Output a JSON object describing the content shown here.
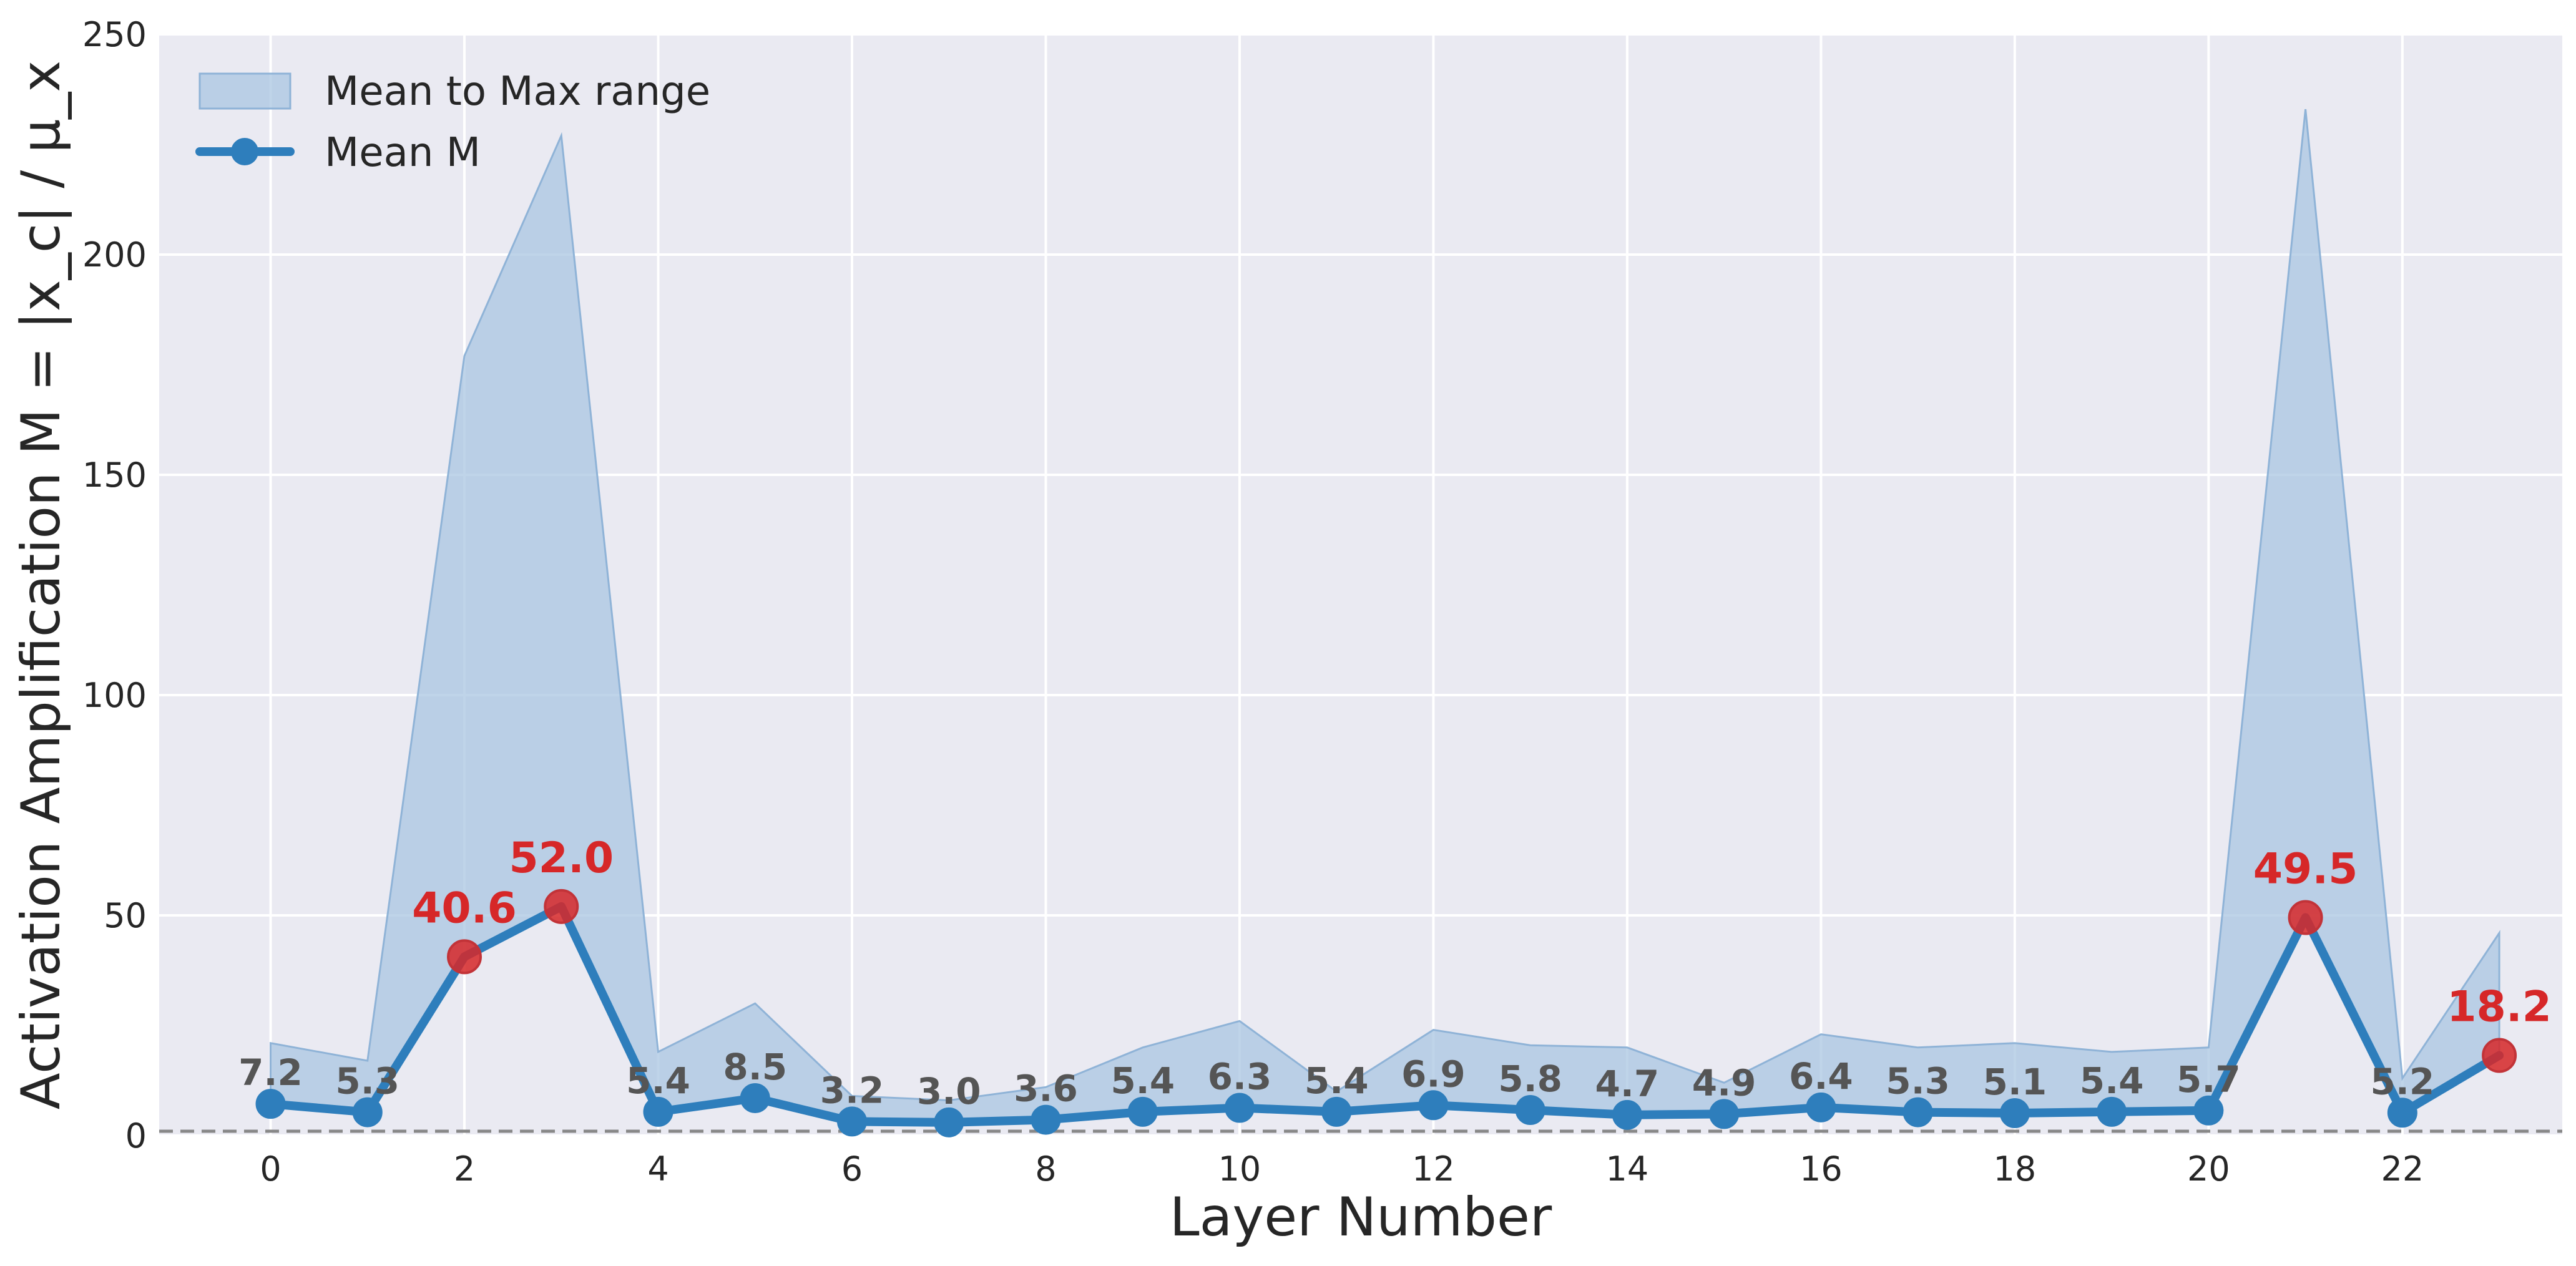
{
  "chart_data": {
    "type": "line",
    "xlabel": "Layer Number",
    "ylabel": "Activation Amplification M = |x_c| / μ_x",
    "xlim": [
      -1.15,
      23.65
    ],
    "ylim": [
      0,
      250
    ],
    "xticks": [
      0,
      2,
      4,
      6,
      8,
      10,
      12,
      14,
      16,
      18,
      20,
      22
    ],
    "yticks": [
      0,
      50,
      100,
      150,
      200,
      250
    ],
    "grid": true,
    "legend_position": "upper-left",
    "reference_line": {
      "y": 1,
      "style": "dashed",
      "color": "#888888"
    },
    "x": [
      0,
      1,
      2,
      3,
      4,
      5,
      6,
      7,
      8,
      9,
      10,
      11,
      12,
      13,
      14,
      15,
      16,
      17,
      18,
      19,
      20,
      21,
      22,
      23
    ],
    "series": [
      {
        "name": "Mean M",
        "kind": "line",
        "color": "#2e7ebc",
        "values": [
          7.2,
          5.3,
          40.6,
          52.0,
          5.4,
          8.5,
          3.2,
          3.0,
          3.6,
          5.4,
          6.3,
          5.4,
          6.9,
          5.8,
          4.7,
          4.9,
          6.4,
          5.3,
          5.1,
          5.4,
          5.7,
          49.5,
          5.2,
          18.2
        ],
        "value_labels": [
          "7.2",
          "5.3",
          "40.6",
          "52.0",
          "5.4",
          "8.5",
          "3.2",
          "3.0",
          "3.6",
          "5.4",
          "6.3",
          "5.4",
          "6.9",
          "5.8",
          "4.7",
          "4.9",
          "6.4",
          "5.3",
          "5.1",
          "5.4",
          "5.7",
          "49.5",
          "5.2",
          "18.2"
        ],
        "highlighted_points": [
          2,
          3,
          21,
          23
        ],
        "highlight_color": "#d62728"
      },
      {
        "name": "Mean to Max range",
        "kind": "area",
        "color": "#a9c6e2",
        "lower": "Mean M",
        "upper": [
          21,
          17,
          177,
          227,
          19,
          30,
          9,
          8,
          11,
          20,
          26,
          10,
          24,
          20.5,
          20,
          12,
          23,
          20,
          21,
          19,
          20,
          233,
          13,
          46
        ]
      }
    ],
    "axes_background": "#eaeaf2",
    "grid_color": "#ffffff"
  }
}
